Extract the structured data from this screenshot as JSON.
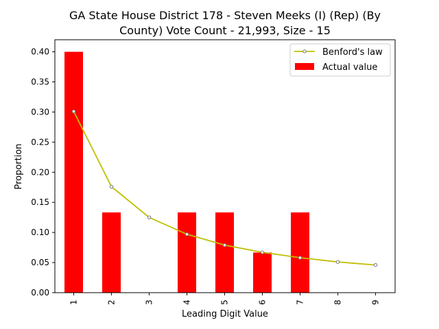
{
  "chart_data": {
    "type": "bar",
    "title_lines": [
      "GA State House District 178 - Steven Meeks (I) (Rep) (By",
      "County) Vote Count - 21,993, Size - 15"
    ],
    "xlabel": "Leading Digit Value",
    "ylabel": "Proportion",
    "categories": [
      "1",
      "2",
      "3",
      "4",
      "5",
      "6",
      "7",
      "8",
      "9"
    ],
    "ylim": [
      0,
      0.42
    ],
    "yticks": [
      "0.00",
      "0.05",
      "0.10",
      "0.15",
      "0.20",
      "0.25",
      "0.30",
      "0.35",
      "0.40"
    ],
    "series": [
      {
        "name": "Benford's law",
        "kind": "line",
        "color": "#bfbf00",
        "values": [
          0.301,
          0.176,
          0.125,
          0.097,
          0.079,
          0.067,
          0.058,
          0.051,
          0.046
        ]
      },
      {
        "name": "Actual value",
        "kind": "bar",
        "color": "#ff0000",
        "values": [
          0.4,
          0.1333,
          0,
          0.1333,
          0.1333,
          0.0667,
          0.1333,
          0,
          0
        ]
      }
    ],
    "legend": "top-right",
    "grid": false
  }
}
